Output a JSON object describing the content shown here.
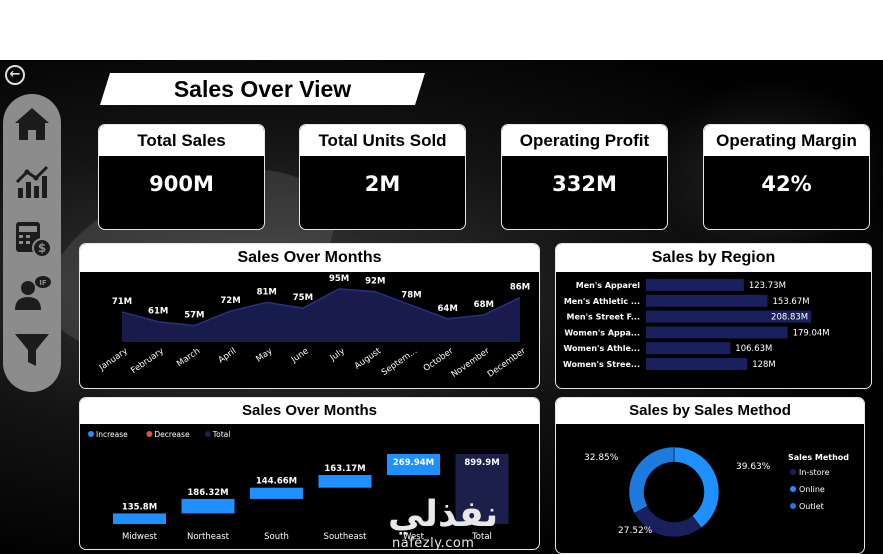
{
  "page": {
    "title": "Sales Over View"
  },
  "nav": {
    "items": [
      "home-icon",
      "line-chart-icon",
      "calculator-money-icon",
      "person-if-icon",
      "filter-icon"
    ]
  },
  "kpis": [
    {
      "label": "Total Sales",
      "value": "900M"
    },
    {
      "label": "Total Units Sold",
      "value": "2M"
    },
    {
      "label": "Operating Profit",
      "value": "332M"
    },
    {
      "label": "Operating Margin",
      "value": "42%"
    }
  ],
  "colors": {
    "accent_blue": "#1e90ff",
    "navy": "#1a1f5e",
    "decrease": "#d9534f",
    "total": "#1c1f4a"
  },
  "chart_data": [
    {
      "type": "area",
      "title": "Sales Over Months",
      "categories": [
        "January",
        "February",
        "March",
        "April",
        "May",
        "June",
        "July",
        "August",
        "Septem...",
        "October",
        "November",
        "December"
      ],
      "values": [
        71,
        61,
        57,
        72,
        81,
        75,
        95,
        92,
        78,
        64,
        68,
        86
      ],
      "labels": [
        "71M",
        "61M",
        "57M",
        "72M",
        "81M",
        "75M",
        "95M",
        "92M",
        "78M",
        "64M",
        "68M",
        "86M"
      ],
      "ylim": [
        40,
        100
      ]
    },
    {
      "type": "bar",
      "orientation": "horizontal",
      "title": "Sales by Region",
      "categories": [
        "Men's Apparel",
        "Men's Athletic ...",
        "Men's Street F...",
        "Women's Appa...",
        "Women's Athle...",
        "Women's Stree..."
      ],
      "values": [
        123.73,
        153.67,
        208.83,
        179.04,
        106.63,
        128
      ],
      "labels": [
        "123.73M",
        "153.67M",
        "208.83M",
        "179.04M",
        "106.63M",
        "128M"
      ],
      "xlim": [
        0,
        215
      ]
    },
    {
      "type": "bar",
      "subtype": "waterfall",
      "title": "Sales Over Months",
      "legend": [
        "Increase",
        "Decrease",
        "Total"
      ],
      "categories": [
        "Midwest",
        "Northeast",
        "South",
        "Southeast",
        "West",
        "Total"
      ],
      "values": [
        135.8,
        186.32,
        144.66,
        163.17,
        269.94,
        899.9
      ],
      "labels": [
        "135.8M",
        "186.32M",
        "144.66M",
        "163.17M",
        "269.94M",
        "899.9M"
      ],
      "ylim": [
        0,
        900
      ]
    },
    {
      "type": "pie",
      "subtype": "donut",
      "title": "Sales by Sales Method",
      "legend_title": "Sales Method",
      "categories": [
        "In-store",
        "Online",
        "Outlet"
      ],
      "values": [
        27.52,
        39.63,
        32.85
      ],
      "labels": [
        "27.52%",
        "39.63%",
        "32.85%"
      ],
      "colors": [
        "#1a1f5e",
        "#1e90ff",
        "#1c7bdc"
      ]
    }
  ],
  "watermark": {
    "arabic": "نفذلي",
    "latin": "nafezly.com"
  }
}
